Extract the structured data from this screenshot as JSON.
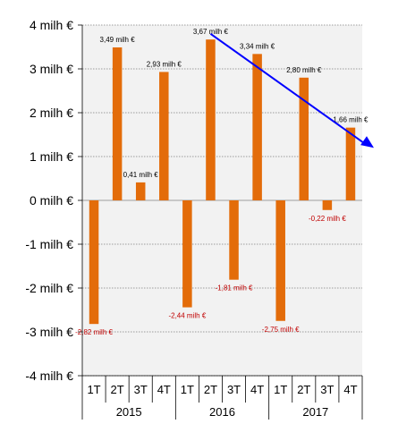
{
  "chart_data": {
    "type": "bar",
    "title": "",
    "xlabel": "",
    "ylabel": "",
    "ylim": [
      -4,
      4
    ],
    "yticks": [
      4,
      3,
      2,
      1,
      0,
      -1,
      -2,
      -3,
      -4
    ],
    "ytick_labels": [
      "4 milh €",
      "3 milh €",
      "2 milh €",
      "1 milh €",
      "0 milh €",
      "-1 milh €",
      "-2 milh €",
      "-3 milh €",
      "-4 milh €"
    ],
    "grid": true,
    "categories": [
      "1T",
      "2T",
      "3T",
      "4T",
      "1T",
      "2T",
      "3T",
      "4T",
      "1T",
      "2T",
      "3T",
      "4T"
    ],
    "years": [
      "2015",
      "2016",
      "2017"
    ],
    "values": [
      -2.82,
      3.49,
      0.41,
      2.93,
      -2.44,
      3.67,
      -1.81,
      3.34,
      -2.75,
      2.8,
      -0.22,
      1.66
    ],
    "data_labels": [
      "-2,82 milh €",
      "3,49 milh €",
      "0,41 milh €",
      "2,93 milh €",
      "-2,44 milh €",
      "3,67 milh €",
      "-1,81 milh €",
      "3,34 milh €",
      "-2,75 milh €",
      "2,80 milh €",
      "-0,22 milh €",
      "1,66 milh €"
    ],
    "trend_arrow": {
      "from_index": 5,
      "from_value": 3.8,
      "to_index": 12,
      "to_value": 1.2
    },
    "colors": {
      "bar": "#e36c0a",
      "plot_background": "#f2f2f2",
      "grid": "#808080",
      "positive_label": "#000000",
      "negative_label": "#c00000",
      "trend_arrow": "#0000ff"
    }
  }
}
